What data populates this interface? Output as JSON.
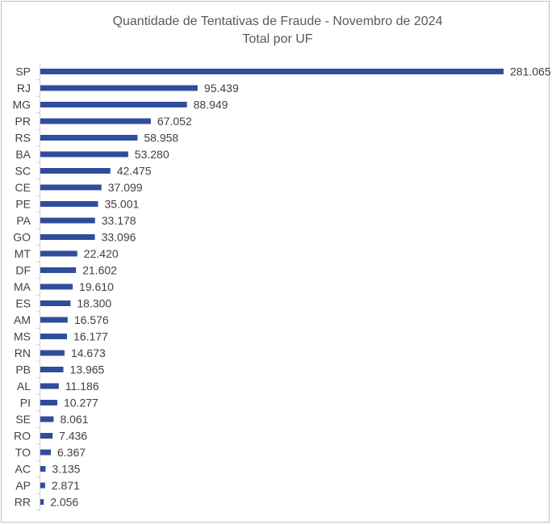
{
  "chart_data": {
    "type": "bar",
    "orientation": "horizontal",
    "title": "Quantidade de Tentativas de Fraude - Novembro de 2024",
    "subtitle": "Total por UF",
    "xlabel": "",
    "ylabel": "",
    "grid": false,
    "legend": "none",
    "bar_color": "#2e4d9b",
    "categories": [
      "SP",
      "RJ",
      "MG",
      "PR",
      "RS",
      "BA",
      "SC",
      "CE",
      "PE",
      "PA",
      "GO",
      "MT",
      "DF",
      "MA",
      "ES",
      "AM",
      "MS",
      "RN",
      "PB",
      "AL",
      "PI",
      "SE",
      "RO",
      "TO",
      "AC",
      "AP",
      "RR"
    ],
    "values": [
      281065,
      95439,
      88949,
      67052,
      58958,
      53280,
      42475,
      37099,
      35001,
      33178,
      33096,
      22420,
      21602,
      19610,
      18300,
      16576,
      16177,
      14673,
      13965,
      11186,
      10277,
      8061,
      7436,
      6367,
      3135,
      2871,
      2056
    ],
    "value_labels": [
      "281.065",
      "95.439",
      "88.949",
      "67.052",
      "58.958",
      "53.280",
      "42.475",
      "37.099",
      "35.001",
      "33.178",
      "33.096",
      "22.420",
      "21.602",
      "19.610",
      "18.300",
      "16.576",
      "16.177",
      "14.673",
      "13.965",
      "11.186",
      "10.277",
      "8.061",
      "7.436",
      "6.367",
      "3.135",
      "2.871",
      "2.056"
    ]
  }
}
